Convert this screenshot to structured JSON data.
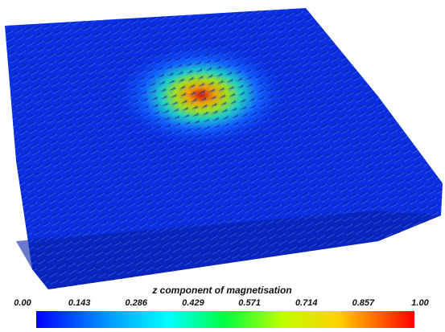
{
  "colorbar": {
    "title": "z component of magnetisation",
    "lim": [
      0,
      1
    ],
    "ticks": [
      {
        "value": 0,
        "label": "0.00"
      },
      0.143,
      0.286,
      0.429,
      0.571,
      0.714,
      0.857,
      {
        "value": 1,
        "label": "1.00"
      }
    ]
  }
}
